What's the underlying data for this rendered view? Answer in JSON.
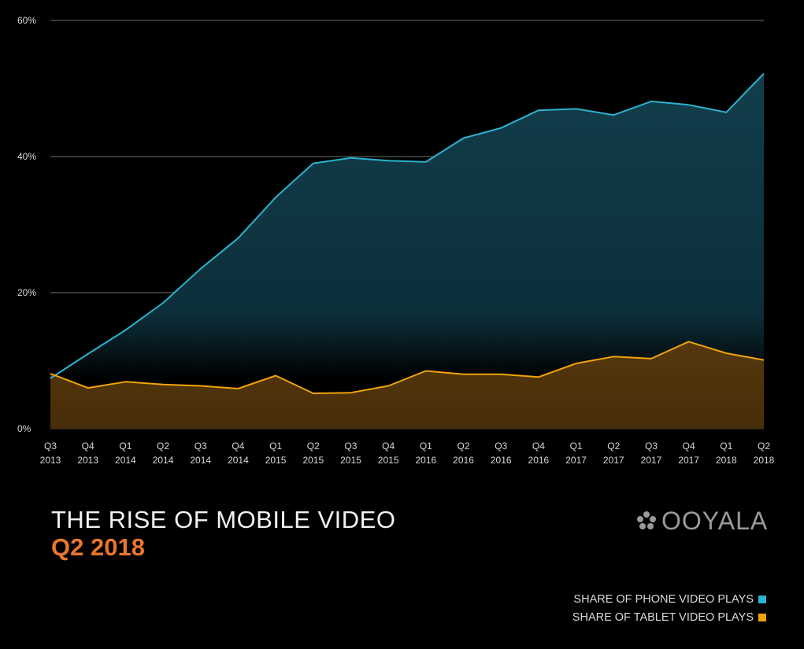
{
  "chart_data": {
    "type": "area",
    "title": "THE RISE OF MOBILE VIDEO",
    "subtitle": "Q2 2018",
    "categories": [
      [
        "Q3",
        "2013"
      ],
      [
        "Q4",
        "2013"
      ],
      [
        "Q1",
        "2014"
      ],
      [
        "Q2",
        "2014"
      ],
      [
        "Q3",
        "2014"
      ],
      [
        "Q4",
        "2014"
      ],
      [
        "Q1",
        "2015"
      ],
      [
        "Q2",
        "2015"
      ],
      [
        "Q3",
        "2015"
      ],
      [
        "Q4",
        "2015"
      ],
      [
        "Q1",
        "2016"
      ],
      [
        "Q2",
        "2016"
      ],
      [
        "Q3",
        "2016"
      ],
      [
        "Q4",
        "2016"
      ],
      [
        "Q1",
        "2017"
      ],
      [
        "Q2",
        "2017"
      ],
      [
        "Q3",
        "2017"
      ],
      [
        "Q4",
        "2017"
      ],
      [
        "Q1",
        "2018"
      ],
      [
        "Q2",
        "2018"
      ]
    ],
    "ylim": [
      0,
      60
    ],
    "yticks": [
      "0%",
      "20%",
      "40%",
      "60%"
    ],
    "grid": true,
    "legend_position": "bottom-right",
    "series": [
      {
        "name": "SHARE OF PHONE VIDEO PLAYS",
        "color": "#2bb3cf",
        "values": [
          7.4,
          11.0,
          14.5,
          18.5,
          23.5,
          28.0,
          34.0,
          39.0,
          39.8,
          39.4,
          39.2,
          42.7,
          44.2,
          46.8,
          47.0,
          46.1,
          48.1,
          47.6,
          46.5,
          52.2
        ]
      },
      {
        "name": "SHARE OF TABLET VIDEO PLAYS",
        "color": "#f0a30a",
        "values": [
          8.1,
          6.0,
          6.9,
          6.5,
          6.3,
          5.9,
          7.8,
          5.2,
          5.3,
          6.3,
          8.5,
          8.0,
          8.0,
          7.6,
          9.6,
          10.6,
          10.3,
          12.8,
          11.1,
          10.1
        ]
      }
    ]
  },
  "brand": {
    "logo_text": "OOYALA",
    "logo_icon": "ooyala-dots-icon"
  },
  "colors": {
    "background": "#000000",
    "grid": "#5a5a5a",
    "title": "#f2f2f2",
    "subtitle": "#e8762b",
    "logo": "#9a9a9a"
  }
}
